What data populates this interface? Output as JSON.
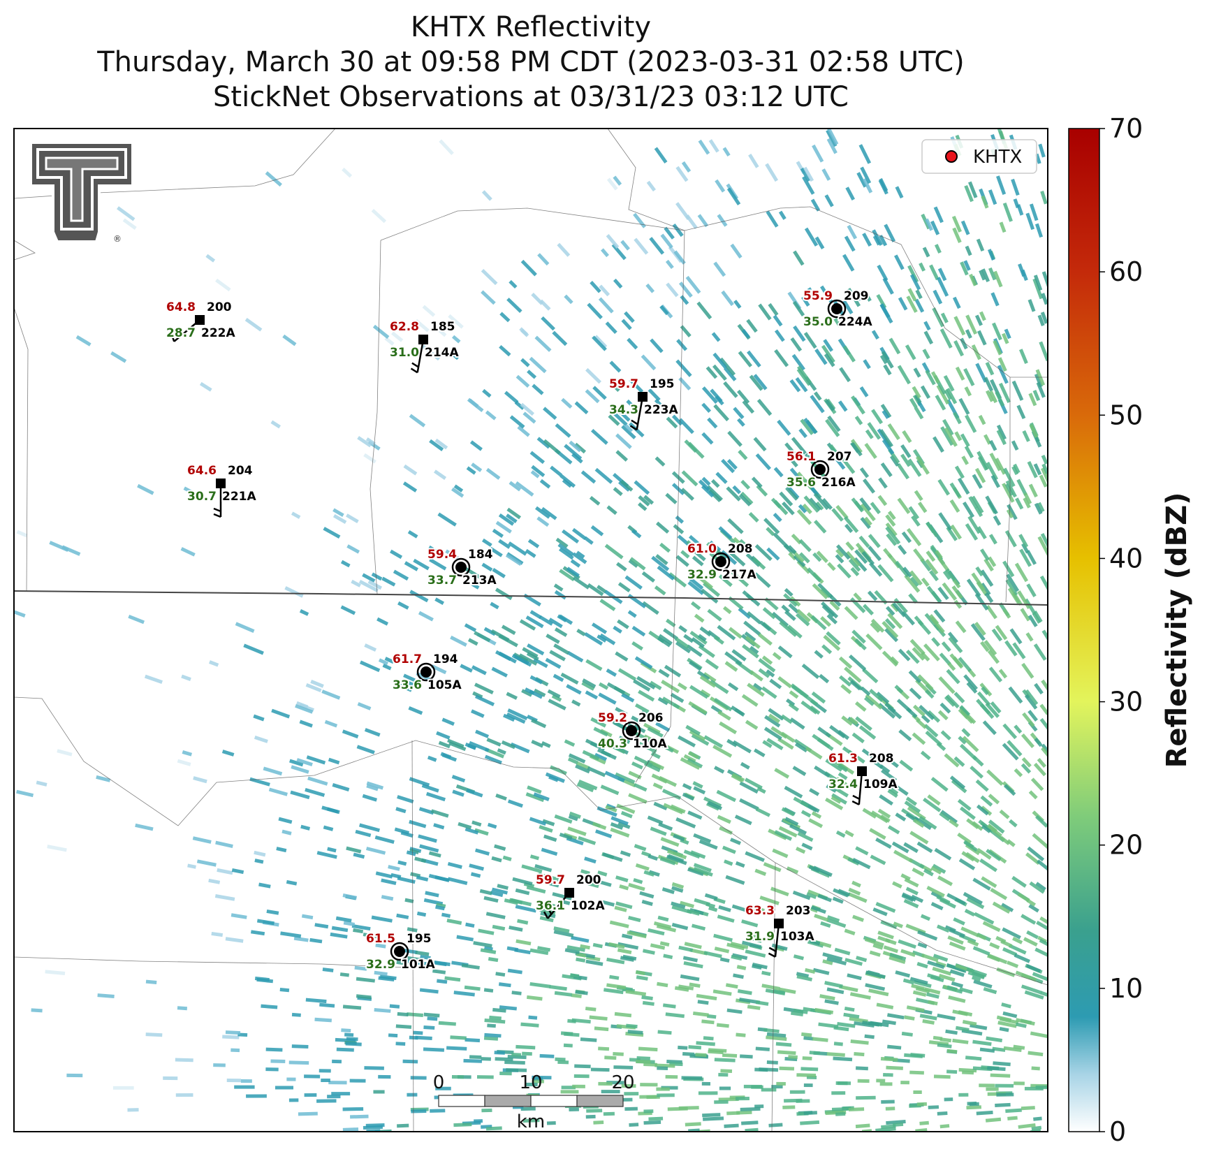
{
  "title": {
    "line1": "KHTX Reflectivity",
    "line2": "Thursday, March 30 at 09:58 PM CDT (2023-03-31 02:58 UTC)",
    "line3": "StickNet Observations at 03/31/23 03:12 UTC"
  },
  "legend": {
    "label": "KHTX",
    "marker_color": "#e8141c"
  },
  "colorbar": {
    "label": "Reflectivity (dBZ)",
    "ticks": [
      "0",
      "10",
      "20",
      "30",
      "40",
      "50",
      "60",
      "70"
    ],
    "range": [
      0,
      70
    ],
    "stops": [
      {
        "v": 0,
        "c": "#ffffff"
      },
      {
        "v": 4,
        "c": "#a8d4e6"
      },
      {
        "v": 8,
        "c": "#2d9bb2"
      },
      {
        "v": 14,
        "c": "#3aa08e"
      },
      {
        "v": 22,
        "c": "#7fcc7a"
      },
      {
        "v": 30,
        "c": "#e3f45c"
      },
      {
        "v": 40,
        "c": "#e6c000"
      },
      {
        "v": 50,
        "c": "#d96a0a"
      },
      {
        "v": 60,
        "c": "#c42a0a"
      },
      {
        "v": 70,
        "c": "#a80000"
      }
    ]
  },
  "logo": {
    "name": "Texas Tech Double T",
    "mark": "®"
  },
  "scalebar": {
    "ticks": [
      "0",
      "10",
      "20"
    ],
    "unit": "km"
  },
  "stations": [
    {
      "id": "222A",
      "temp": "64.8",
      "dew": "28.7",
      "dir": "200",
      "marker": "square"
    },
    {
      "id": "214A",
      "temp": "62.8",
      "dew": "31.0",
      "dir": "185",
      "marker": "square"
    },
    {
      "id": "224A",
      "temp": "55.9",
      "dew": "35.0",
      "dir": "209",
      "marker": "circle"
    },
    {
      "id": "223A",
      "temp": "59.7",
      "dew": "34.3",
      "dir": "195",
      "marker": "square"
    },
    {
      "id": "221A",
      "temp": "64.6",
      "dew": "30.7",
      "dir": "204",
      "marker": "square"
    },
    {
      "id": "216A",
      "temp": "56.1",
      "dew": "35.6",
      "dir": "207",
      "marker": "circle"
    },
    {
      "id": "213A",
      "temp": "59.4",
      "dew": "33.7",
      "dir": "184",
      "marker": "circle"
    },
    {
      "id": "217A",
      "temp": "61.0",
      "dew": "32.9",
      "dir": "208",
      "marker": "circle"
    },
    {
      "id": "105A",
      "temp": "61.7",
      "dew": "33.6",
      "dir": "194",
      "marker": "circle"
    },
    {
      "id": "110A",
      "temp": "59.2",
      "dew": "40.3",
      "dir": "206",
      "marker": "circle"
    },
    {
      "id": "109A",
      "temp": "61.3",
      "dew": "32.4",
      "dir": "208",
      "marker": "square"
    },
    {
      "id": "102A",
      "temp": "59.7",
      "dew": "36.1",
      "dir": "200",
      "marker": "square"
    },
    {
      "id": "103A",
      "temp": "63.3",
      "dew": "31.9",
      "dir": "203",
      "marker": "square"
    },
    {
      "id": "101A",
      "temp": "61.5",
      "dew": "32.9",
      "dir": "195",
      "marker": "circle"
    }
  ]
}
